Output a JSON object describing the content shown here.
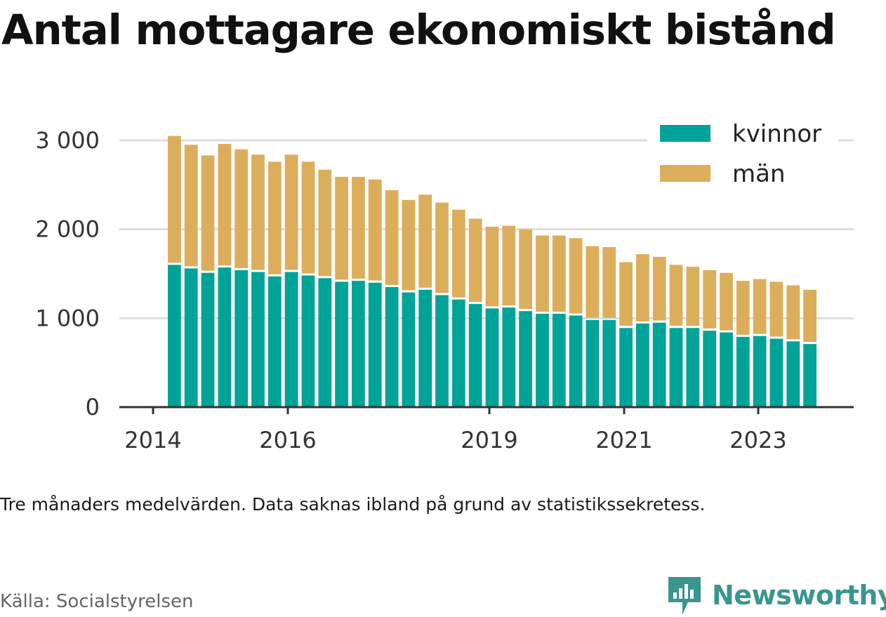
{
  "title": "Antal mottagare ekonomiskt bistånd",
  "note": "Tre månaders medelvärden. Data saknas ibland på grund av statistikssekretess.",
  "source": "Källa: Socialstyrelsen",
  "brand": "Newsworthy",
  "colors": {
    "kvinnor": "#00a398",
    "man": "#dcae5c",
    "grid": "#dddddd",
    "axis": "#333333",
    "brand": "#3a958f"
  },
  "chart_data": {
    "type": "bar",
    "stacked": true,
    "ylim": [
      0,
      3000
    ],
    "yticks": [
      0,
      1000,
      2000,
      3000
    ],
    "ytick_labels": [
      "0",
      "1 000",
      "2 000",
      "3 000"
    ],
    "xtick_labels": [
      "2014",
      "2016",
      "2019",
      "2021",
      "2023"
    ],
    "grid": true,
    "legend_position": "top-right",
    "series": [
      {
        "name": "kvinnor",
        "values": [
          1600,
          1560,
          1510,
          1570,
          1540,
          1520,
          1470,
          1520,
          1480,
          1450,
          1410,
          1420,
          1400,
          1350,
          1290,
          1320,
          1260,
          1210,
          1160,
          1110,
          1120,
          1080,
          1050,
          1050,
          1030,
          980,
          980,
          890,
          940,
          950,
          890,
          890,
          860,
          840,
          790,
          800,
          770,
          740,
          710
        ]
      },
      {
        "name": "män",
        "values": [
          1450,
          1390,
          1320,
          1390,
          1360,
          1320,
          1290,
          1320,
          1280,
          1220,
          1180,
          1170,
          1160,
          1090,
          1040,
          1070,
          1040,
          1010,
          960,
          920,
          920,
          920,
          880,
          880,
          870,
          830,
          820,
          740,
          780,
          740,
          710,
          690,
          680,
          670,
          630,
          640,
          640,
          630,
          610
        ]
      }
    ]
  }
}
